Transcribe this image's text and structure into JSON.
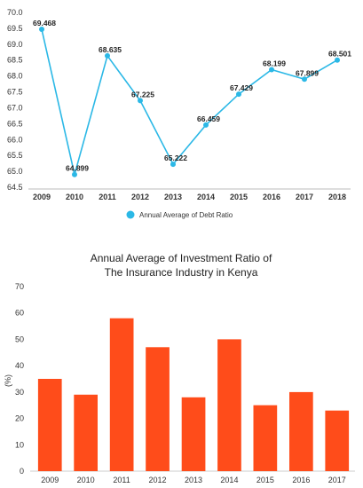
{
  "chart_data": [
    {
      "type": "line",
      "title": "",
      "xlabel": "",
      "ylabel": "",
      "x": [
        "2009",
        "2010",
        "2011",
        "2012",
        "2013",
        "2014",
        "2015",
        "2016",
        "2017",
        "2018"
      ],
      "series": [
        {
          "name": "Annual Average of Debt Ratio",
          "values": [
            69.468,
            64.899,
            68.635,
            67.225,
            65.222,
            66.459,
            67.429,
            68.199,
            67.899,
            68.501
          ],
          "labels": [
            "69.468",
            "64.899",
            "68.635",
            "67.225",
            "65.222",
            "66.459",
            "67.429",
            "68.199",
            "67.899",
            "68.501"
          ],
          "color": "#2bb8e6"
        }
      ],
      "yticks": [
        "64.5",
        "65.0",
        "65.5",
        "66.0",
        "66.5",
        "67.0",
        "67.5",
        "68.0",
        "68.5",
        "69.0",
        "69.5",
        "70.0"
      ],
      "ylim": [
        64.5,
        70.0
      ],
      "grid": false,
      "legend_position": "bottom"
    },
    {
      "type": "bar",
      "title": "Annual Average of Investment Ratio of",
      "subtitle": "The Insurance Industry in Kenya",
      "xlabel": "",
      "ylabel": "(%)",
      "categories": [
        "2009",
        "2010",
        "2011",
        "2012",
        "2013",
        "2014",
        "2015",
        "2016",
        "2017"
      ],
      "values": [
        35,
        29,
        58,
        47,
        28,
        50,
        25,
        30,
        23
      ],
      "color": "#ff4c1a",
      "yticks": [
        "0",
        "10",
        "20",
        "30",
        "40",
        "50",
        "60",
        "70"
      ],
      "ylim": [
        0,
        70
      ],
      "grid": false
    }
  ]
}
